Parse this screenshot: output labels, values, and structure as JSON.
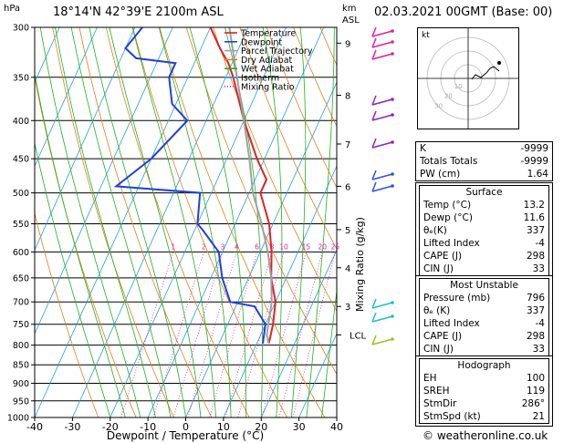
{
  "header": {
    "hpa_label": "hPa",
    "location": "18°14'N  42°39'E  2100m  ASL",
    "km_label": "km",
    "asl_label": "ASL",
    "datetime": "02.03.2021  00GMT  (Base: 00)"
  },
  "chart_data": {
    "type": "line",
    "title": "",
    "xlabel": "Dewpoint / Temperature (°C)",
    "ylabel": "hPa",
    "xlim": [
      -40,
      40
    ],
    "ylim": [
      1000,
      300
    ],
    "y_scale": "log",
    "pressure_ticks": [
      300,
      350,
      400,
      450,
      500,
      550,
      600,
      650,
      700,
      750,
      800,
      850,
      900,
      950,
      1000
    ],
    "temp_ticks": [
      -40,
      -30,
      -20,
      -10,
      0,
      10,
      20,
      30,
      40
    ],
    "km_ticks": [
      {
        "label": "9",
        "p": 315
      },
      {
        "label": "8",
        "p": 370
      },
      {
        "label": "7",
        "p": 430
      },
      {
        "label": "6",
        "p": 490
      },
      {
        "label": "5",
        "p": 560
      },
      {
        "label": "4",
        "p": 630
      },
      {
        "label": "3",
        "p": 710
      },
      {
        "label": "LCL",
        "p": 775
      }
    ],
    "mixing_ratio_labels": [
      "1",
      "2",
      "3",
      "4",
      "6",
      "8",
      "10",
      "15",
      "20",
      "25"
    ],
    "mixing_ratio_values": [
      1,
      2,
      3,
      4,
      6,
      8,
      10,
      15,
      20,
      25
    ],
    "right_axis_label": "Mixing Ratio (g/kg)",
    "legend": [
      {
        "name": "Temperature",
        "color": "#e02020"
      },
      {
        "name": "Dewpoint",
        "color": "#1f3fe0"
      },
      {
        "name": "Parcel Trajectory",
        "color": "#a0a0a0"
      },
      {
        "name": "Dry Adiabat",
        "color": "#e0801a"
      },
      {
        "name": "Wet Adiabat",
        "color": "#20b020"
      },
      {
        "name": "Isotherm",
        "color": "#20a0e0"
      },
      {
        "name": "Mixing Ratio",
        "color": "#e020a0"
      }
    ],
    "series": [
      {
        "name": "Temperature",
        "color": "#e02020",
        "points": [
          [
            13.2,
            796
          ],
          [
            12,
            750
          ],
          [
            10,
            700
          ],
          [
            6,
            650
          ],
          [
            3,
            600
          ],
          [
            -1,
            550
          ],
          [
            -7,
            500
          ],
          [
            -7,
            480
          ],
          [
            -12,
            450
          ],
          [
            -20,
            400
          ],
          [
            -28,
            350
          ],
          [
            -31,
            335
          ],
          [
            -35,
            320
          ],
          [
            -40,
            300
          ]
        ]
      },
      {
        "name": "Dewpoint",
        "color": "#1f3fe0",
        "points": [
          [
            11.6,
            796
          ],
          [
            10,
            750
          ],
          [
            5,
            710
          ],
          [
            -2,
            700
          ],
          [
            -7,
            650
          ],
          [
            -11,
            600
          ],
          [
            -18,
            560
          ],
          [
            -20,
            550
          ],
          [
            -23,
            500
          ],
          [
            -46,
            490
          ],
          [
            -40,
            450
          ],
          [
            -35,
            400
          ],
          [
            -41,
            380
          ],
          [
            -45,
            350
          ],
          [
            -45,
            335
          ],
          [
            -56,
            330
          ],
          [
            -60,
            320
          ],
          [
            -58,
            300
          ]
        ]
      },
      {
        "name": "Parcel Trajectory",
        "color": "#a0a0a0",
        "points": [
          [
            13.2,
            796
          ],
          [
            11.6,
            775
          ],
          [
            9,
            700
          ],
          [
            6,
            650
          ],
          [
            2,
            600
          ],
          [
            -3,
            550
          ],
          [
            -9,
            500
          ],
          [
            -14,
            450
          ],
          [
            -20,
            400
          ],
          [
            -27,
            350
          ],
          [
            -35,
            300
          ]
        ]
      }
    ]
  },
  "hodograph": {
    "unit_label": "kt",
    "ring_labels": [
      "10",
      "20",
      "30"
    ]
  },
  "indices": [
    {
      "label": "K",
      "value": "-9999"
    },
    {
      "label": "Totals Totals",
      "value": "-9999"
    },
    {
      "label": "PW (cm)",
      "value": "1.64"
    }
  ],
  "surface": {
    "title": "Surface",
    "rows": [
      {
        "label": "Temp (°C)",
        "value": "13.2"
      },
      {
        "label": "Dewp (°C)",
        "value": "11.6"
      },
      {
        "label": "θₑ(K)",
        "value": "337"
      },
      {
        "label": "Lifted Index",
        "value": "-4"
      },
      {
        "label": "CAPE (J)",
        "value": "298"
      },
      {
        "label": "CIN (J)",
        "value": "33"
      }
    ]
  },
  "most_unstable": {
    "title": "Most Unstable",
    "rows": [
      {
        "label": "Pressure (mb)",
        "value": "796"
      },
      {
        "label": "θₑ (K)",
        "value": "337"
      },
      {
        "label": "Lifted Index",
        "value": "-4"
      },
      {
        "label": "CAPE (J)",
        "value": "298"
      },
      {
        "label": "CIN (J)",
        "value": "33"
      }
    ]
  },
  "hodo_table": {
    "title": "Hodograph",
    "rows": [
      {
        "label": "EH",
        "value": "100"
      },
      {
        "label": "SREH",
        "value": "119"
      },
      {
        "label": "StmDir",
        "value": "286°"
      },
      {
        "label": "StmSpd (kt)",
        "value": "21"
      }
    ]
  },
  "footer": "© weatheronline.co.uk"
}
